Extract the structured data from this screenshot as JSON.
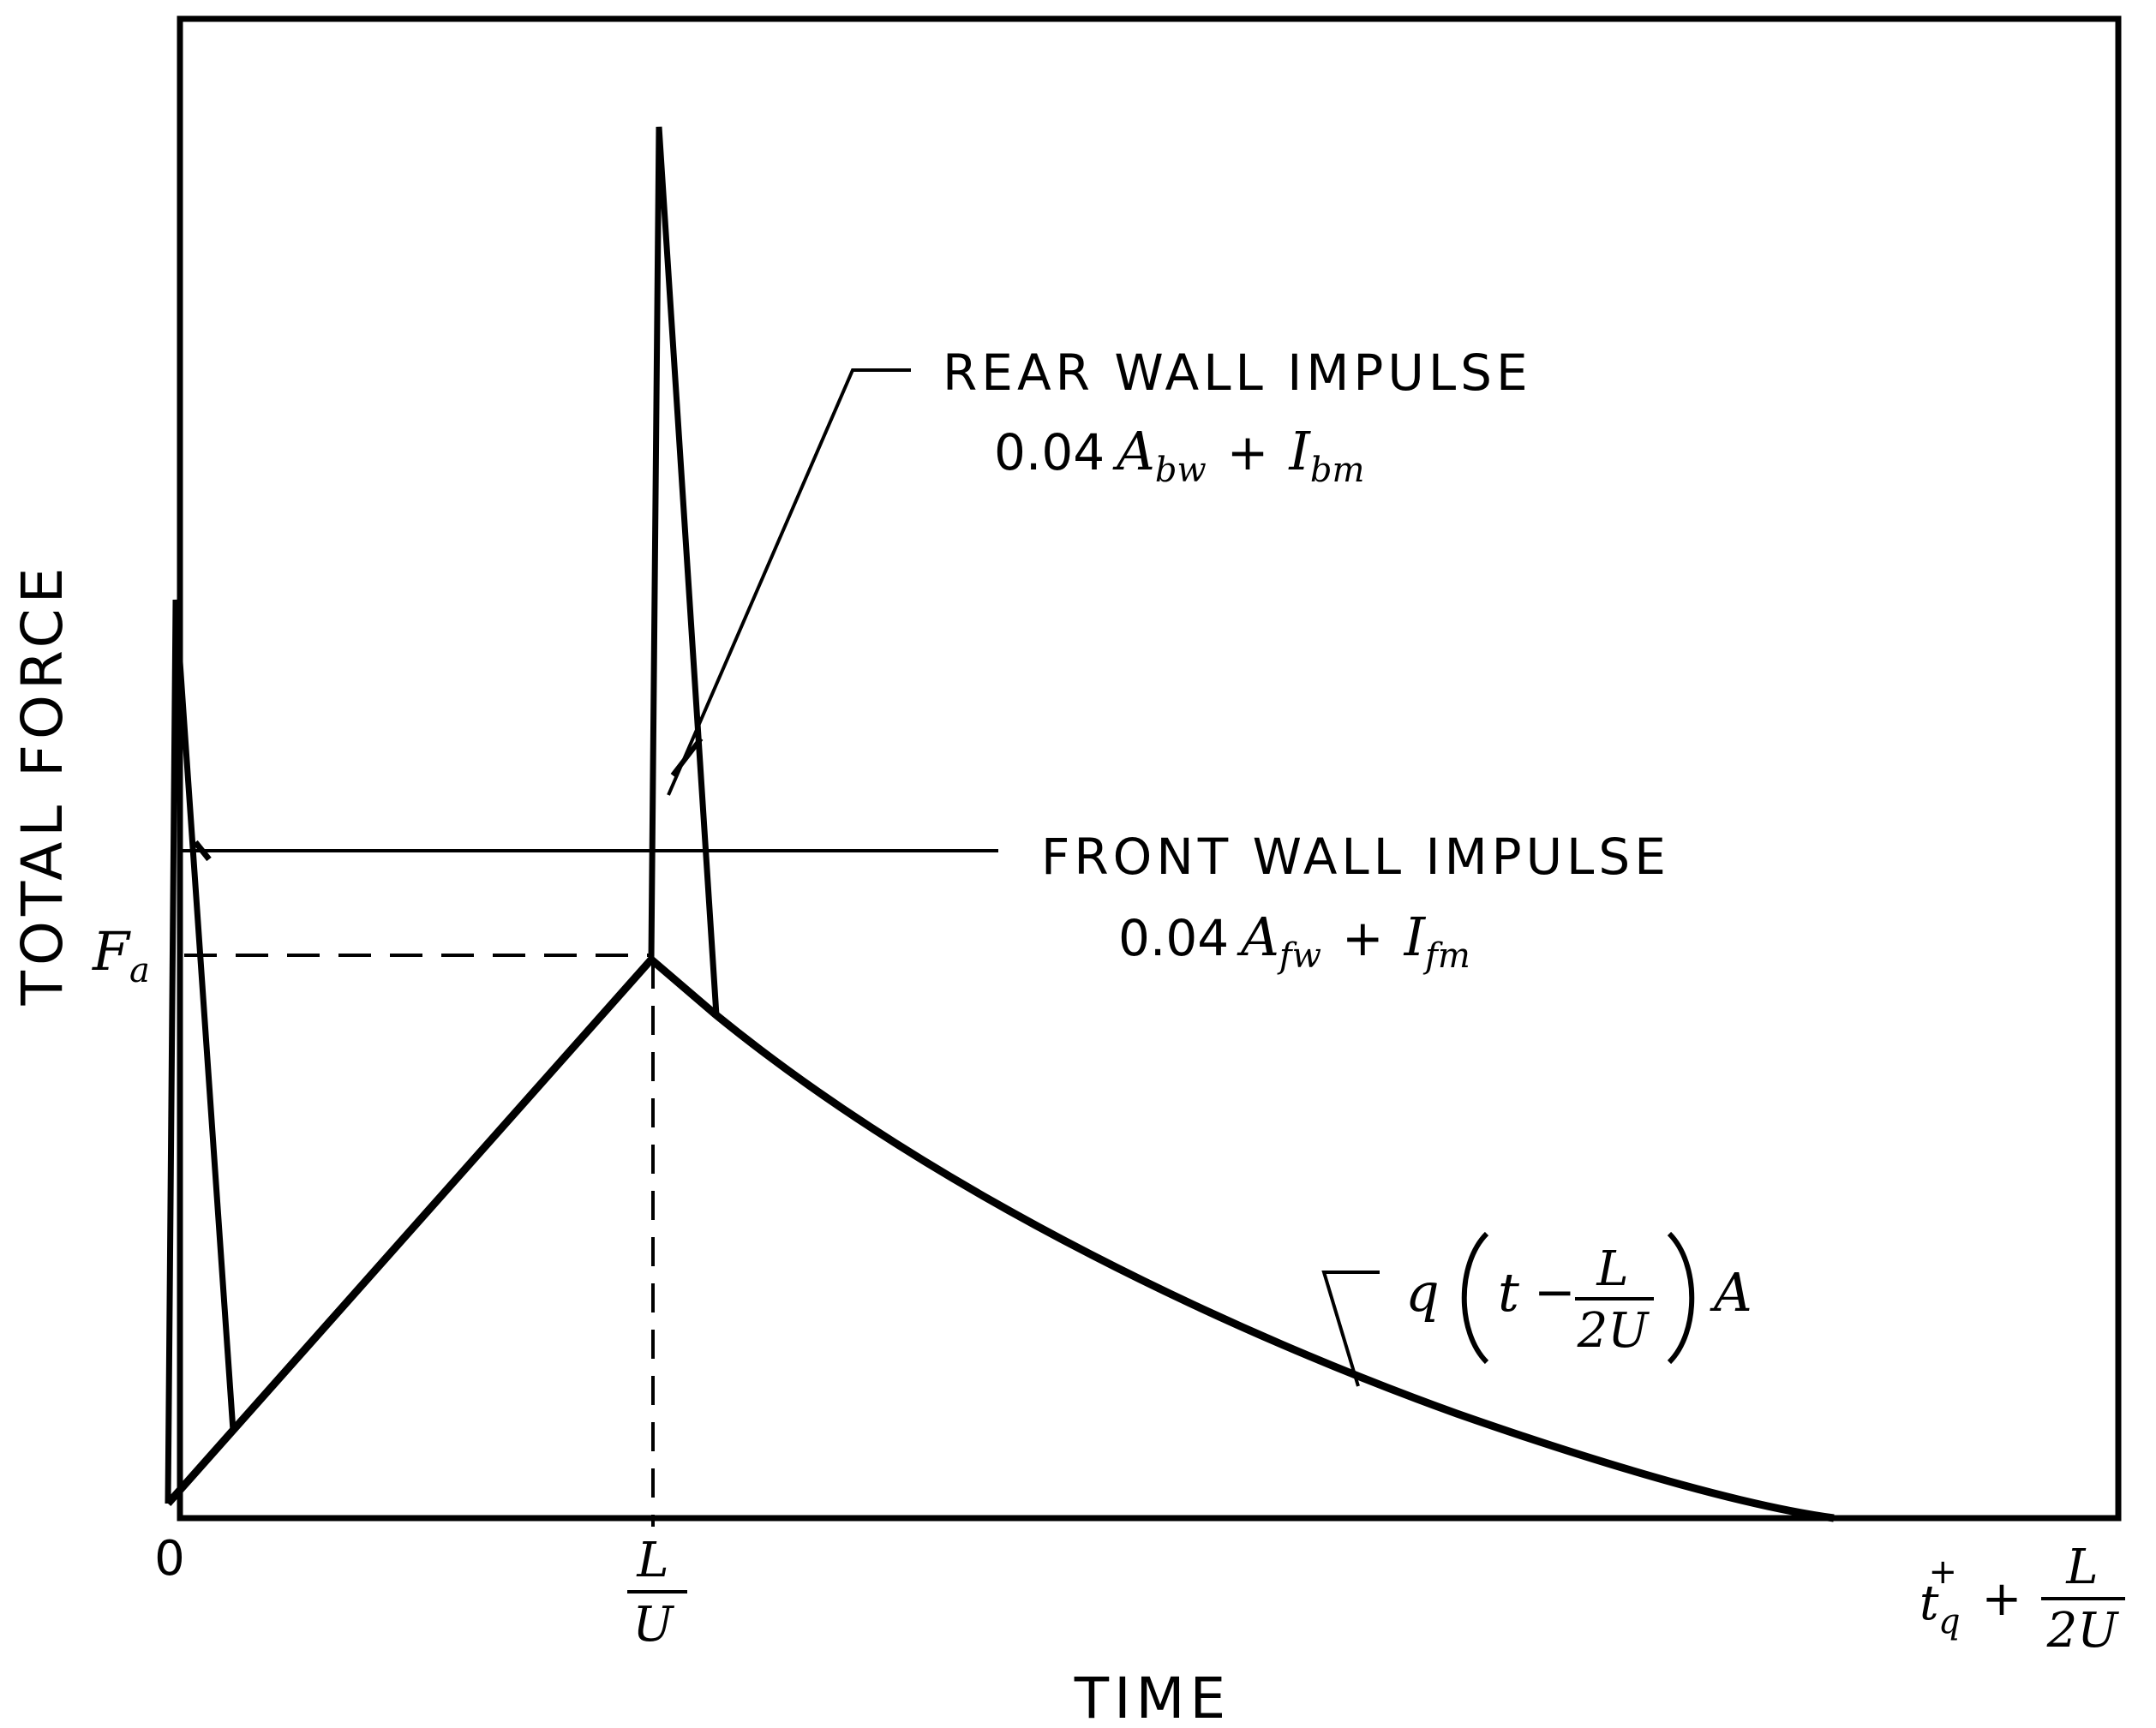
{
  "figure": {
    "y_axis_title": "TOTAL FORCE",
    "x_axis_title": "TIME",
    "fa_label": {
      "main": "F",
      "sub": "a"
    },
    "x_ticks": {
      "origin": "0",
      "l_over_u": {
        "num": "L",
        "den": "U"
      },
      "end": {
        "t": "t",
        "star": "+",
        "sub": "q",
        "plus": "+",
        "num": "L",
        "den": "2U"
      }
    },
    "rear_wall": {
      "title": "REAR WALL IMPULSE",
      "formula": {
        "coef": "0.04",
        "A": "A",
        "A_sub": "bw",
        "plus": "+",
        "I": "I",
        "I_sub": "bm"
      }
    },
    "front_wall": {
      "title": "FRONT WALL IMPULSE",
      "formula": {
        "coef": "0.04",
        "A": "A",
        "A_sub": "fw",
        "plus": "+",
        "I": "I",
        "I_sub": "fm"
      }
    },
    "decay_label": {
      "q": "q",
      "t": "t",
      "minus": "−",
      "num": "L",
      "den": "2U",
      "A": "A"
    },
    "colors": {
      "ink": "#000000",
      "background": "#ffffff"
    }
  }
}
